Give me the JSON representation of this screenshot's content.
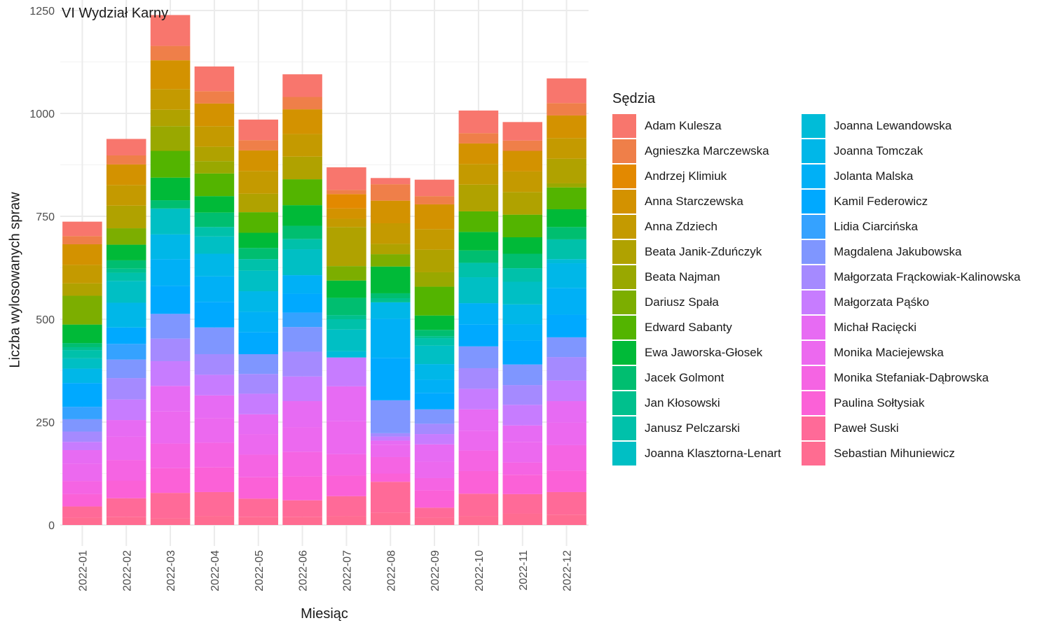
{
  "chart_data": {
    "type": "bar",
    "stacked": true,
    "title": "VI Wydział Karny",
    "xlabel": "Miesiąc",
    "ylabel": "Liczba wylosowanych spraw",
    "ylim": [
      0,
      1250
    ],
    "yticks": [
      0,
      250,
      500,
      750,
      1000,
      1250
    ],
    "grid": true,
    "legend_title": "Sędzia",
    "legend_position": "right",
    "categories": [
      "2022-01",
      "2022-02",
      "2022-03",
      "2022-04",
      "2022-05",
      "2022-06",
      "2022-07",
      "2022-08",
      "2022-09",
      "2022-10",
      "2022-11",
      "2022-12"
    ],
    "series": [
      {
        "name": "Sebastian Mihuniewicz",
        "color": "#FF6C91",
        "values": [
          18,
          20,
          16,
          22,
          20,
          20,
          22,
          30,
          18,
          22,
          28,
          25
        ]
      },
      {
        "name": "Paweł Suski",
        "color": "#FF6A98",
        "values": [
          27,
          45,
          62,
          58,
          44,
          40,
          48,
          75,
          24,
          54,
          47,
          55
        ]
      },
      {
        "name": "Paulina Sołtysiak",
        "color": "#FB61D7",
        "values": [
          30,
          43,
          60,
          60,
          52,
          58,
          50,
          20,
          42,
          55,
          47,
          52
        ]
      },
      {
        "name": "Monika Stefaniak-Dąbrowska",
        "color": "#F564E3",
        "values": [
          32,
          50,
          60,
          60,
          55,
          60,
          52,
          40,
          30,
          50,
          30,
          62
        ]
      },
      {
        "name": "Monika Maciejewska",
        "color": "#EC69EF",
        "values": [
          42,
          57,
          78,
          60,
          50,
          60,
          80,
          30,
          40,
          48,
          50,
          55
        ]
      },
      {
        "name": "Michał Racięcki",
        "color": "#E76BF3",
        "values": [
          33,
          40,
          62,
          55,
          48,
          63,
          85,
          10,
          42,
          52,
          40,
          52
        ]
      },
      {
        "name": "Małgorzata Pąśko",
        "color": "#C77CFF",
        "values": [
          20,
          50,
          60,
          50,
          50,
          60,
          70,
          10,
          25,
          50,
          50,
          50
        ]
      },
      {
        "name": "Małgorzata Frąckowiak-Kalinowska",
        "color": "#A58AFF",
        "values": [
          25,
          52,
          55,
          50,
          48,
          60,
          0,
          8,
          25,
          50,
          48,
          57
        ]
      },
      {
        "name": "Magdalena Jakubowska",
        "color": "#7F96FF",
        "values": [
          30,
          45,
          60,
          65,
          48,
          60,
          0,
          80,
          35,
          53,
          50,
          48
        ]
      },
      {
        "name": "Lidia Ciarcińska",
        "color": "#35A2FF",
        "values": [
          30,
          38,
          0,
          0,
          0,
          35,
          0,
          0,
          0,
          0,
          0,
          0
        ]
      },
      {
        "name": "Kamil Federowicz",
        "color": "#00A9FF",
        "values": [
          58,
          40,
          68,
          62,
          53,
          46,
          0,
          103,
          40,
          53,
          58,
          55
        ]
      },
      {
        "name": "Jolanta Malska",
        "color": "#00B0F6",
        "values": [
          0,
          0,
          65,
          62,
          50,
          45,
          0,
          95,
          32,
          52,
          40,
          65
        ]
      },
      {
        "name": "Joanna Tomczak",
        "color": "#00B7E8",
        "values": [
          35,
          60,
          60,
          55,
          50,
          0,
          0,
          40,
          38,
          0,
          48,
          60
        ]
      },
      {
        "name": "Joanna Lewandowska",
        "color": "#00BCD8",
        "values": [
          0,
          0,
          0,
          0,
          0,
          0,
          15,
          0,
          0,
          0,
          0,
          10
        ]
      },
      {
        "name": "Joanna Klasztorna-Lenart",
        "color": "#00BFC4",
        "values": [
          25,
          53,
          63,
          42,
          50,
          63,
          53,
          0,
          45,
          63,
          55,
          0
        ]
      },
      {
        "name": "Janusz Pelczarski",
        "color": "#00C1AA",
        "values": [
          20,
          20,
          0,
          23,
          28,
          25,
          25,
          0,
          18,
          35,
          33,
          48
        ]
      },
      {
        "name": "Jan Kłosowski",
        "color": "#00C08D",
        "values": [
          7,
          10,
          0,
          0,
          0,
          0,
          10,
          10,
          5,
          0,
          0,
          0
        ]
      },
      {
        "name": "Jacek Golmont",
        "color": "#00BE70",
        "values": [
          10,
          20,
          20,
          35,
          27,
          32,
          42,
          12,
          15,
          30,
          35,
          30
        ]
      },
      {
        "name": "Ewa Jaworska-Głosek",
        "color": "#00BA38",
        "values": [
          45,
          38,
          55,
          40,
          37,
          50,
          42,
          65,
          35,
          45,
          40,
          43
        ]
      },
      {
        "name": "Edward Sabanty",
        "color": "#53B400",
        "values": [
          0,
          0,
          65,
          55,
          50,
          63,
          0,
          0,
          70,
          50,
          55,
          53
        ]
      },
      {
        "name": "Dariusz Spała",
        "color": "#7CAE00",
        "values": [
          70,
          40,
          0,
          0,
          0,
          0,
          35,
          30,
          0,
          0,
          0,
          0
        ]
      },
      {
        "name": "Beata Najman",
        "color": "#99A800",
        "values": [
          0,
          0,
          60,
          30,
          0,
          0,
          0,
          0,
          35,
          0,
          0,
          10
        ]
      },
      {
        "name": "Beata Janik-Zduńczyk",
        "color": "#B0A200",
        "values": [
          30,
          55,
          40,
          35,
          45,
          55,
          95,
          25,
          55,
          65,
          55,
          60
        ]
      },
      {
        "name": "Anna Zdziech",
        "color": "#C49A00",
        "values": [
          45,
          50,
          50,
          50,
          55,
          55,
          20,
          50,
          50,
          50,
          50,
          50
        ]
      },
      {
        "name": "Anna Starczewska",
        "color": "#D39200",
        "values": [
          50,
          50,
          70,
          55,
          50,
          60,
          25,
          55,
          60,
          50,
          50,
          55
        ]
      },
      {
        "name": "Andrzej Klimiuk",
        "color": "#E38900",
        "values": [
          0,
          0,
          0,
          0,
          0,
          0,
          35,
          0,
          0,
          0,
          0,
          0
        ]
      },
      {
        "name": "Agnieszka Marczewska",
        "color": "#EF7F49",
        "values": [
          20,
          22,
          35,
          30,
          25,
          30,
          10,
          40,
          20,
          25,
          25,
          30
        ]
      },
      {
        "name": "Adam Kulesza",
        "color": "#F8766D",
        "values": [
          35,
          40,
          75,
          60,
          50,
          55,
          55,
          15,
          40,
          55,
          45,
          60
        ]
      }
    ]
  },
  "legend": {
    "title": "Sędzia",
    "col1": [
      {
        "label": "Adam Kulesza",
        "color": "#F8766D"
      },
      {
        "label": "Agnieszka Marczewska",
        "color": "#EF7F49"
      },
      {
        "label": "Andrzej Klimiuk",
        "color": "#E38900"
      },
      {
        "label": "Anna Starczewska",
        "color": "#D39200"
      },
      {
        "label": "Anna Zdziech",
        "color": "#C49A00"
      },
      {
        "label": "Beata Janik-Zduńczyk",
        "color": "#B0A200"
      },
      {
        "label": "Beata Najman",
        "color": "#99A800"
      },
      {
        "label": "Dariusz Spała",
        "color": "#7CAE00"
      },
      {
        "label": "Edward Sabanty",
        "color": "#53B400"
      },
      {
        "label": "Ewa Jaworska-Głosek",
        "color": "#00BA38"
      },
      {
        "label": "Jacek Golmont",
        "color": "#00BE70"
      },
      {
        "label": "Jan Kłosowski",
        "color": "#00C08D"
      },
      {
        "label": "Janusz Pelczarski",
        "color": "#00C1AA"
      },
      {
        "label": "Joanna Klasztorna-Lenart",
        "color": "#00BFC4"
      }
    ],
    "col2": [
      {
        "label": "Joanna Lewandowska",
        "color": "#00BCD8"
      },
      {
        "label": "Joanna Tomczak",
        "color": "#00B7E8"
      },
      {
        "label": "Jolanta Malska",
        "color": "#00B0F6"
      },
      {
        "label": "Kamil Federowicz",
        "color": "#00A9FF"
      },
      {
        "label": "Lidia Ciarcińska",
        "color": "#35A2FF"
      },
      {
        "label": "Magdalena Jakubowska",
        "color": "#7F96FF"
      },
      {
        "label": "Małgorzata Frąckowiak-Kalinowska",
        "color": "#A58AFF"
      },
      {
        "label": "Małgorzata Pąśko",
        "color": "#C77CFF"
      },
      {
        "label": "Michał Racięcki",
        "color": "#E76BF3"
      },
      {
        "label": "Monika Maciejewska",
        "color": "#EC69EF"
      },
      {
        "label": "Monika Stefaniak-Dąbrowska",
        "color": "#F564E3"
      },
      {
        "label": "Paulina Sołtysiak",
        "color": "#FB61D7"
      },
      {
        "label": "Paweł Suski",
        "color": "#FF6A98"
      },
      {
        "label": "Sebastian Mihuniewicz",
        "color": "#FF6C91"
      }
    ]
  }
}
